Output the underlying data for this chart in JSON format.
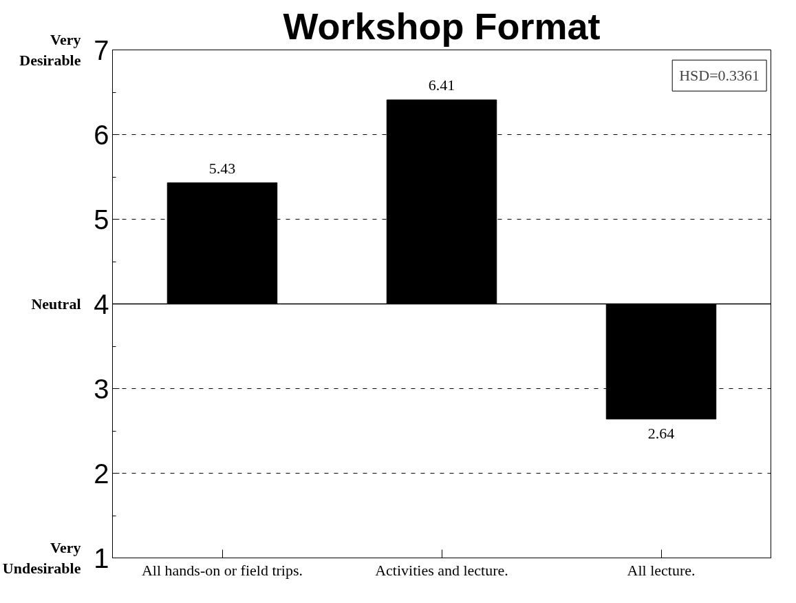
{
  "chart_data": {
    "type": "bar",
    "title": "Workshop Format",
    "categories": [
      "All hands-on or field trips.",
      "Activities and lecture.",
      "All lecture."
    ],
    "base": [
      4,
      4,
      4
    ],
    "values": [
      1.43,
      2.41,
      -1.36
    ],
    "color": "#000000",
    "value_labels": [
      "5.43",
      "6.41",
      "2.64"
    ],
    "ylim": [
      1,
      7
    ],
    "yticks": [
      1,
      {
        "value": 1.5,
        "label": null
      },
      2,
      {
        "value": 2.5,
        "label": null
      },
      3,
      {
        "value": 3.5,
        "label": null
      },
      4,
      {
        "value": 4.5,
        "label": null
      },
      5,
      {
        "value": 5.5,
        "label": null
      },
      6,
      {
        "value": 6.5,
        "label": null
      },
      7
    ],
    "ref_lines": [
      {
        "axis": "y",
        "value": 4,
        "color": "#000000",
        "line_style": "solid"
      }
    ],
    "grid": "y",
    "line_style": "dashed",
    "annotations": [
      "Very Desirable",
      "Neutral",
      "Very Undesirable",
      "HSD=0.3361"
    ]
  }
}
